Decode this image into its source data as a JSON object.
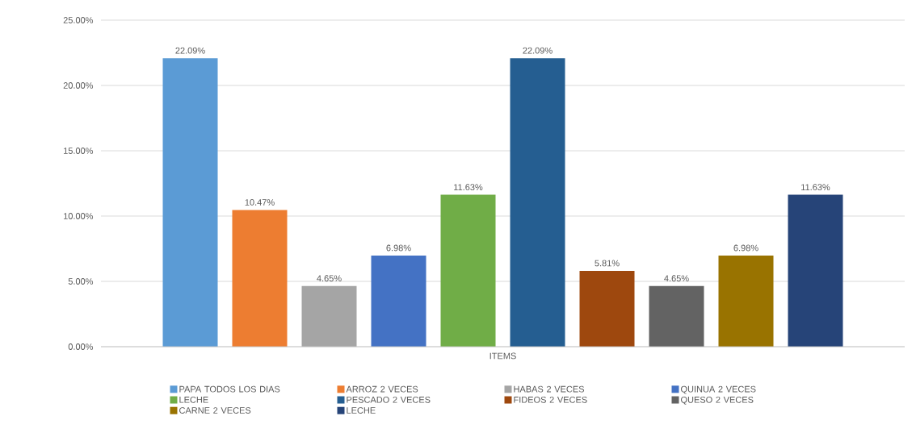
{
  "chart_data": {
    "type": "bar",
    "categories": [
      "ITEMS"
    ],
    "series": [
      {
        "name": "PAPA TODOS LOS DIAS",
        "color": "#5b9bd5",
        "values": [
          22.09
        ],
        "value_labels": [
          "22.09%"
        ]
      },
      {
        "name": "ARROZ 2 VECES",
        "color": "#ed7d31",
        "values": [
          10.47
        ],
        "value_labels": [
          "10.47%"
        ]
      },
      {
        "name": "HABAS 2 VECES",
        "color": "#a5a5a5",
        "values": [
          4.65
        ],
        "value_labels": [
          "4.65%"
        ]
      },
      {
        "name": "QUINUA 2 VECES",
        "color": "#4472c4",
        "values": [
          6.98
        ],
        "value_labels": [
          "6.98%"
        ]
      },
      {
        "name": "LECHE",
        "color": "#70ad47",
        "values": [
          11.63
        ],
        "value_labels": [
          "11.63%"
        ]
      },
      {
        "name": "PESCADO 2 VECES",
        "color": "#255e91",
        "values": [
          22.09
        ],
        "value_labels": [
          "22.09%"
        ]
      },
      {
        "name": "FIDEOS 2 VECES",
        "color": "#9e480e",
        "values": [
          5.81
        ],
        "value_labels": [
          "5.81%"
        ]
      },
      {
        "name": "QUESO 2 VECES",
        "color": "#636363",
        "values": [
          4.65
        ],
        "value_labels": [
          "4.65%"
        ]
      },
      {
        "name": "CARNE 2 VECES",
        "color": "#997300",
        "values": [
          6.98
        ],
        "value_labels": [
          "6.98%"
        ]
      },
      {
        "name": "LECHE",
        "color": "#264478",
        "values": [
          11.63
        ],
        "value_labels": [
          "11.63%"
        ]
      }
    ],
    "ylim": [
      0,
      25
    ],
    "yticks": [
      {
        "value": 0,
        "label": "0.00%"
      },
      {
        "value": 5,
        "label": "5.00%"
      },
      {
        "value": 10,
        "label": "10.00%"
      },
      {
        "value": 15,
        "label": "15.00%"
      },
      {
        "value": 20,
        "label": "20.00%"
      },
      {
        "value": 25,
        "label": "25.00%"
      }
    ],
    "grid": "y",
    "legend": "bottom"
  }
}
